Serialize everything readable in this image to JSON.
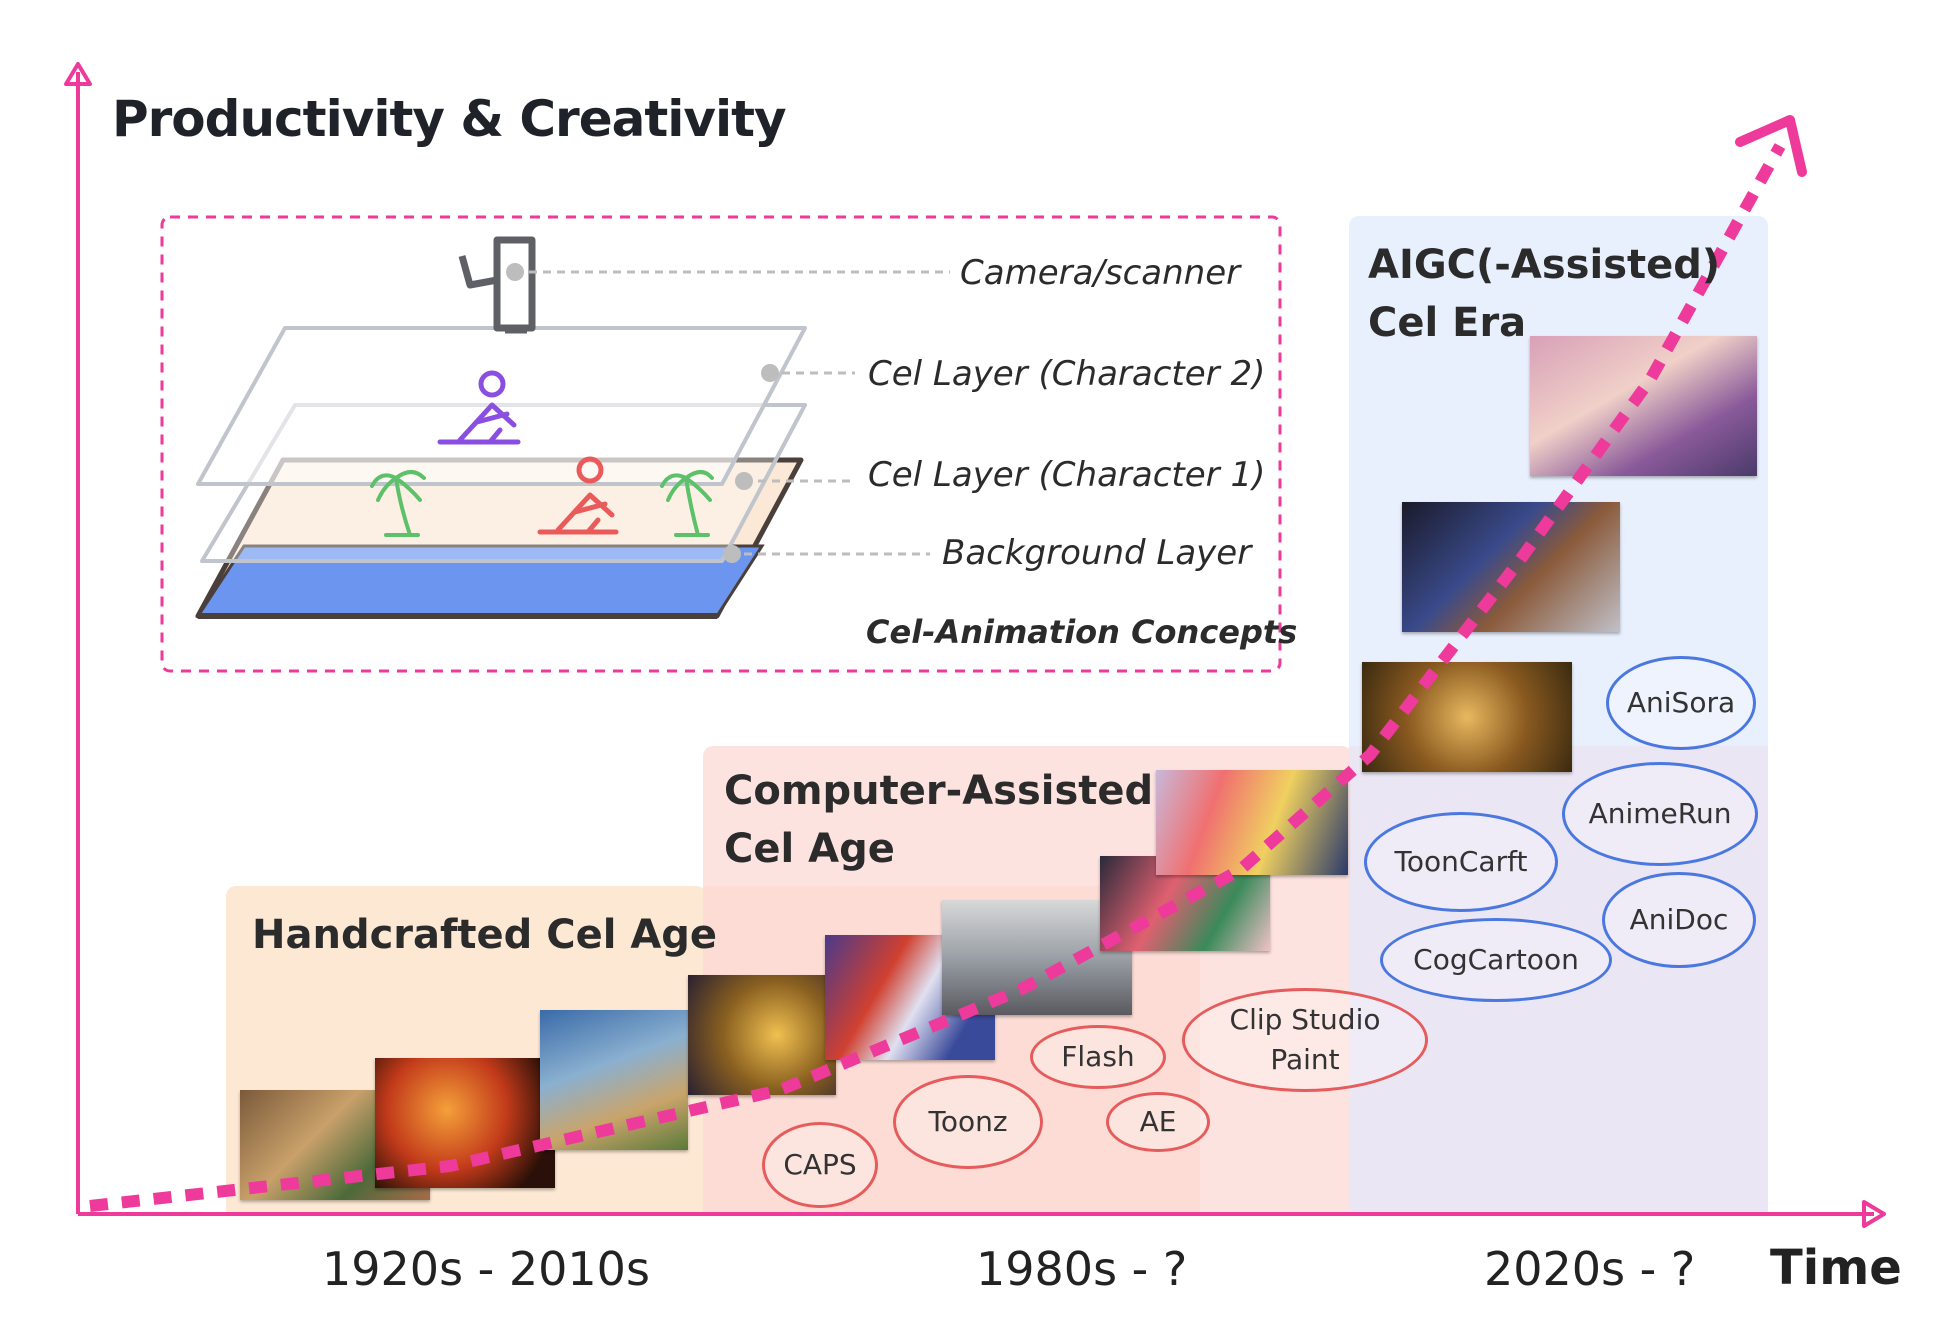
{
  "axes": {
    "y_label": "Productivity & Creativity",
    "x_label": "Time",
    "accent_color": "#ee3a9a"
  },
  "concepts": {
    "camera_label": "Camera/scanner",
    "cel2_label": "Cel Layer (Character 2)",
    "cel1_label": "Cel Layer (Character 1)",
    "background_label": "Background Layer",
    "title": "Cel-Animation Concepts"
  },
  "eras": [
    {
      "title": "Handcrafted Cel Age",
      "period": "1920s - 2010s",
      "color": "#fde8d4"
    },
    {
      "title": "Computer-Assisted\nCel Age",
      "period": "1980s - ?",
      "color": "#fde3df"
    },
    {
      "title": "AIGC(-Assisted)\nCel Era",
      "period": "2020s - ?",
      "color": "#e8effd"
    }
  ],
  "tools": {
    "computer_assisted": [
      "CAPS",
      "Toonz",
      "Flash",
      "AE",
      "Clip Studio\nPaint"
    ],
    "aigc": [
      "AniSora",
      "AnimeRun",
      "ToonCarft",
      "AniDoc",
      "CogCartoon"
    ],
    "computer_assisted_color": "#e65b5b",
    "aigc_color": "#4a78e0"
  },
  "icons": [
    "camera-icon",
    "character-icon",
    "palm-tree-icon"
  ]
}
